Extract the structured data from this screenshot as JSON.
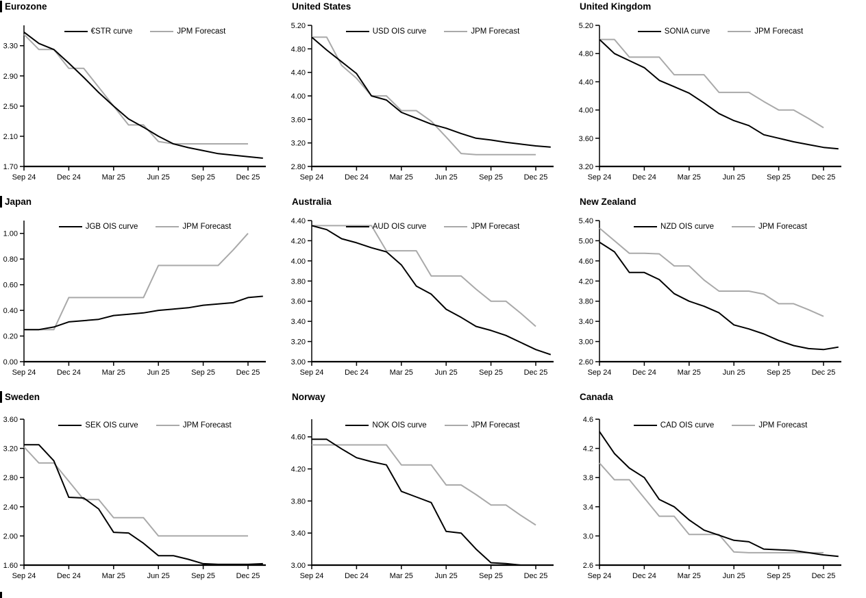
{
  "page": {
    "description": "Grid of nine rate forecast charts: market OIS curves vs JPM Forecast",
    "accent_black": "#000000",
    "accent_gray": "#a9a9a9"
  },
  "chart_data": [
    {
      "type": "line",
      "title": "Eurozone",
      "section_bar": true,
      "legend_position": "top",
      "x_tick_labels": [
        "Sep 24",
        "Dec 24",
        "Mar 25",
        "Jun 25",
        "Sep 25",
        "Dec 25"
      ],
      "x_tick_months": [
        0,
        3,
        6,
        9,
        12,
        15
      ],
      "ylim": [
        1.7,
        3.57
      ],
      "ytick_labels": [
        "1.70",
        "2.10",
        "2.50",
        "2.90",
        "3.30"
      ],
      "grid": false,
      "series": [
        {
          "name": "€STR curve",
          "color": "#000000",
          "values": [
            3.48,
            3.33,
            3.25,
            3.07,
            2.88,
            2.68,
            2.5,
            2.33,
            2.22,
            2.1,
            2.0,
            1.95,
            1.91,
            1.87,
            1.85,
            1.83,
            1.81
          ]
        },
        {
          "name": "JPM Forecast",
          "color": "#a9a9a9",
          "values": [
            3.45,
            3.25,
            3.25,
            3.0,
            3.0,
            2.75,
            2.5,
            2.25,
            2.25,
            2.03,
            2.0,
            2.0,
            2.0,
            2.0,
            2.0,
            2.0
          ]
        }
      ]
    },
    {
      "type": "line",
      "title": "United States",
      "section_bar": false,
      "legend_position": "top",
      "x_tick_labels": [
        "Sep 24",
        "Dec 24",
        "Mar 25",
        "Jun 25",
        "Sep 25",
        "Dec 25"
      ],
      "x_tick_months": [
        0,
        3,
        6,
        9,
        12,
        15
      ],
      "ylim": [
        2.8,
        5.2
      ],
      "ytick_labels": [
        "2.80",
        "3.20",
        "3.60",
        "4.00",
        "4.40",
        "4.80",
        "5.20"
      ],
      "grid": false,
      "series": [
        {
          "name": "USD OIS curve",
          "color": "#000000",
          "values": [
            5.0,
            4.78,
            4.58,
            4.38,
            4.0,
            3.93,
            3.72,
            3.62,
            3.52,
            3.45,
            3.36,
            3.28,
            3.25,
            3.21,
            3.18,
            3.15,
            3.13
          ]
        },
        {
          "name": "JPM Forecast",
          "color": "#a9a9a9",
          "values": [
            5.0,
            5.0,
            4.52,
            4.3,
            4.0,
            4.0,
            3.75,
            3.75,
            3.57,
            3.3,
            3.02,
            3.0,
            3.0,
            3.0,
            3.0,
            3.0
          ]
        }
      ]
    },
    {
      "type": "line",
      "title": "United Kingdom",
      "section_bar": false,
      "legend_position": "top",
      "x_tick_labels": [
        "Sep 24",
        "Dec 24",
        "Mar 25",
        "Jun 25",
        "Sep 25",
        "Dec 25"
      ],
      "x_tick_months": [
        0,
        3,
        6,
        9,
        12,
        15
      ],
      "ylim": [
        3.2,
        5.2
      ],
      "ytick_labels": [
        "3.20",
        "3.60",
        "4.00",
        "4.40",
        "4.80",
        "5.20"
      ],
      "grid": false,
      "series": [
        {
          "name": "SONIA curve",
          "color": "#000000",
          "values": [
            5.0,
            4.8,
            4.7,
            4.6,
            4.42,
            4.33,
            4.24,
            4.1,
            3.95,
            3.85,
            3.78,
            3.65,
            3.6,
            3.55,
            3.51,
            3.47,
            3.45
          ]
        },
        {
          "name": "JPM Forecast",
          "color": "#a9a9a9",
          "values": [
            5.0,
            5.0,
            4.75,
            4.75,
            4.75,
            4.5,
            4.5,
            4.5,
            4.25,
            4.25,
            4.25,
            4.12,
            4.0,
            4.0,
            3.88,
            3.75
          ]
        }
      ]
    },
    {
      "type": "line",
      "title": "Japan",
      "section_bar": true,
      "legend_position": "top",
      "x_tick_labels": [
        "Sep 24",
        "Dec 24",
        "Mar 25",
        "Jun 25",
        "Sep 25",
        "Dec 25"
      ],
      "x_tick_months": [
        0,
        3,
        6,
        9,
        12,
        15
      ],
      "ylim": [
        0.0,
        1.1
      ],
      "ytick_labels": [
        "0.00",
        "0.20",
        "0.40",
        "0.60",
        "0.80",
        "1.00"
      ],
      "grid": false,
      "series": [
        {
          "name": "JGB OIS curve",
          "color": "#000000",
          "values": [
            0.25,
            0.25,
            0.27,
            0.31,
            0.32,
            0.33,
            0.36,
            0.37,
            0.38,
            0.4,
            0.41,
            0.42,
            0.44,
            0.45,
            0.46,
            0.5,
            0.51
          ]
        },
        {
          "name": "JPM Forecast",
          "color": "#a9a9a9",
          "values": [
            0.25,
            0.25,
            0.25,
            0.5,
            0.5,
            0.5,
            0.5,
            0.5,
            0.5,
            0.75,
            0.75,
            0.75,
            0.75,
            0.75,
            0.87,
            1.0
          ]
        }
      ]
    },
    {
      "type": "line",
      "title": "Australia",
      "section_bar": false,
      "legend_position": "top",
      "x_tick_labels": [
        "Sep 24",
        "Dec 24",
        "Mar 25",
        "Jun 25",
        "Sep 25",
        "Dec 25"
      ],
      "x_tick_months": [
        0,
        3,
        6,
        9,
        12,
        15
      ],
      "ylim": [
        3.0,
        4.4
      ],
      "ytick_labels": [
        "3.00",
        "3.20",
        "3.40",
        "3.60",
        "3.80",
        "4.00",
        "4.20",
        "4.40"
      ],
      "grid": false,
      "series": [
        {
          "name": "AUD OIS curve",
          "color": "#000000",
          "values": [
            4.35,
            4.31,
            4.22,
            4.18,
            4.13,
            4.09,
            3.96,
            3.75,
            3.67,
            3.52,
            3.44,
            3.35,
            3.31,
            3.26,
            3.19,
            3.12,
            3.07
          ]
        },
        {
          "name": "JPM Forecast",
          "color": "#a9a9a9",
          "values": [
            4.35,
            4.35,
            4.35,
            4.35,
            4.35,
            4.1,
            4.1,
            4.1,
            3.85,
            3.85,
            3.85,
            3.72,
            3.6,
            3.6,
            3.48,
            3.35
          ]
        }
      ]
    },
    {
      "type": "line",
      "title": "New Zealand",
      "section_bar": false,
      "legend_position": "top",
      "x_tick_labels": [
        "Sep 24",
        "Dec 24",
        "Mar 25",
        "Jun 25",
        "Sep 25",
        "Dec 25"
      ],
      "x_tick_months": [
        0,
        3,
        6,
        9,
        12,
        15
      ],
      "ylim": [
        2.6,
        5.4
      ],
      "ytick_labels": [
        "2.60",
        "3.00",
        "3.40",
        "3.80",
        "4.20",
        "4.60",
        "5.00",
        "5.40"
      ],
      "grid": false,
      "series": [
        {
          "name": "NZD OIS curve",
          "color": "#000000",
          "values": [
            4.97,
            4.78,
            4.37,
            4.37,
            4.23,
            3.95,
            3.8,
            3.7,
            3.57,
            3.33,
            3.25,
            3.15,
            3.02,
            2.92,
            2.86,
            2.84,
            2.89
          ]
        },
        {
          "name": "JPM Forecast",
          "color": "#a9a9a9",
          "values": [
            5.25,
            5.0,
            4.75,
            4.75,
            4.74,
            4.5,
            4.5,
            4.22,
            4.0,
            4.0,
            4.0,
            3.94,
            3.75,
            3.75,
            3.63,
            3.5
          ]
        }
      ]
    },
    {
      "type": "line",
      "title": "Sweden",
      "section_bar": true,
      "legend_position": "top",
      "x_tick_labels": [
        "Sep 24",
        "Dec 24",
        "Mar 25",
        "Jun 25",
        "Sep 25",
        "Dec 25"
      ],
      "x_tick_months": [
        0,
        3,
        6,
        9,
        12,
        15
      ],
      "ylim": [
        1.6,
        3.6
      ],
      "ytick_labels": [
        "1.60",
        "2.00",
        "2.40",
        "2.80",
        "3.20",
        "3.60"
      ],
      "grid": false,
      "series": [
        {
          "name": "SEK OIS curve",
          "color": "#000000",
          "values": [
            3.25,
            3.25,
            3.03,
            2.53,
            2.52,
            2.37,
            2.05,
            2.04,
            1.9,
            1.73,
            1.73,
            1.68,
            1.62,
            1.61,
            1.61,
            1.61,
            1.62
          ]
        },
        {
          "name": "JPM Forecast",
          "color": "#a9a9a9",
          "values": [
            3.22,
            3.0,
            3.0,
            2.75,
            2.5,
            2.5,
            2.25,
            2.25,
            2.25,
            2.0,
            2.0,
            2.0,
            2.0,
            2.0,
            2.0,
            2.0
          ]
        }
      ]
    },
    {
      "type": "line",
      "title": "Norway",
      "section_bar": false,
      "legend_position": "top",
      "x_tick_labels": [
        "Sep 24",
        "Dec 24",
        "Mar 25",
        "Jun 25",
        "Sep 25",
        "Dec 25"
      ],
      "x_tick_months": [
        0,
        3,
        6,
        9,
        12,
        15
      ],
      "ylim": [
        3.0,
        4.82
      ],
      "ytick_labels": [
        "3.00",
        "3.40",
        "3.80",
        "4.20",
        "4.60"
      ],
      "grid": false,
      "series": [
        {
          "name": "NOK OIS curve",
          "color": "#000000",
          "values": [
            4.57,
            4.57,
            4.45,
            4.34,
            4.29,
            4.25,
            3.92,
            3.85,
            3.78,
            3.42,
            3.4,
            3.2,
            3.03,
            3.02,
            3.0
          ]
        },
        {
          "name": "JPM Forecast",
          "color": "#a9a9a9",
          "values": [
            4.5,
            4.5,
            4.5,
            4.5,
            4.5,
            4.5,
            4.25,
            4.25,
            4.25,
            4.0,
            4.0,
            3.88,
            3.75,
            3.75,
            3.62,
            3.5
          ]
        }
      ]
    },
    {
      "type": "line",
      "title": "Canada",
      "section_bar": false,
      "legend_position": "top",
      "x_tick_labels": [
        "Sep 24",
        "Dec 24",
        "Mar 25",
        "Jun 25",
        "Sep 25",
        "Dec 25"
      ],
      "x_tick_months": [
        0,
        3,
        6,
        9,
        12,
        15
      ],
      "ylim": [
        2.6,
        4.6
      ],
      "ytick_labels": [
        "2.6",
        "3.0",
        "3.4",
        "3.8",
        "4.2",
        "4.6"
      ],
      "grid": false,
      "series": [
        {
          "name": "CAD OIS curve",
          "color": "#000000",
          "values": [
            4.43,
            4.13,
            3.93,
            3.8,
            3.5,
            3.4,
            3.22,
            3.08,
            3.01,
            2.94,
            2.92,
            2.82,
            2.81,
            2.8,
            2.77,
            2.74,
            2.72
          ]
        },
        {
          "name": "JPM Forecast",
          "color": "#a9a9a9",
          "values": [
            4.0,
            3.77,
            3.77,
            3.52,
            3.27,
            3.27,
            3.02,
            3.02,
            3.02,
            2.78,
            2.77,
            2.77,
            2.77,
            2.77,
            2.77,
            2.77
          ]
        }
      ]
    }
  ]
}
